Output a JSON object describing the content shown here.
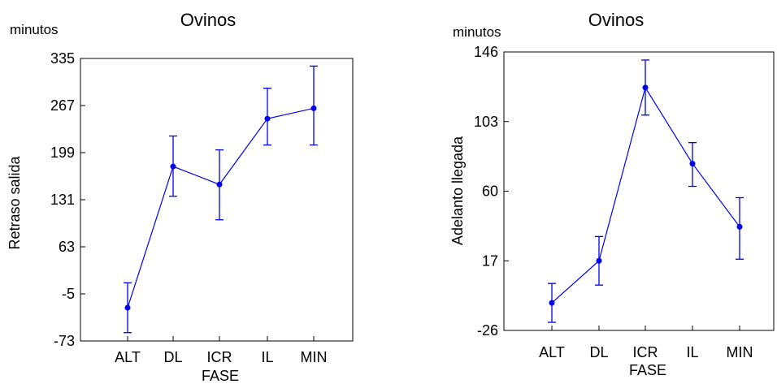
{
  "chart_data": [
    {
      "type": "line",
      "title": "Ovinos",
      "unit_label": "minutos",
      "ylabel": "Retraso salida",
      "xlabel": "FASE",
      "categories": [
        "ALT",
        "DL",
        "ICR",
        "IL",
        "MIN"
      ],
      "yticks": [
        -73,
        -5,
        63,
        131,
        199,
        267,
        335
      ],
      "ylim": [
        -73,
        335
      ],
      "series": [
        {
          "values": [
            -25,
            179,
            153,
            248,
            263
          ],
          "error_low": [
            -61,
            136,
            102,
            210,
            210
          ],
          "error_high": [
            11,
            223,
            203,
            292,
            324
          ],
          "color": "#0000ee"
        }
      ],
      "grid": false
    },
    {
      "type": "line",
      "title": "Ovinos",
      "unit_label": "minutos",
      "ylabel": "Adelanto llegada",
      "xlabel": "FASE",
      "categories": [
        "ALT",
        "DL",
        "ICR",
        "IL",
        "MIN"
      ],
      "yticks": [
        -26,
        17,
        60,
        103,
        146
      ],
      "ylim": [
        -26,
        146
      ],
      "series": [
        {
          "values": [
            -9,
            17,
            124,
            77,
            38
          ],
          "error_low": [
            -21,
            2,
            107,
            63,
            18
          ],
          "error_high": [
            3,
            32,
            141,
            90,
            56
          ],
          "color": "#0000ee"
        }
      ],
      "grid": false
    }
  ]
}
